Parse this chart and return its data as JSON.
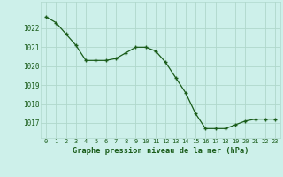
{
  "x": [
    0,
    1,
    2,
    3,
    4,
    5,
    6,
    7,
    8,
    9,
    10,
    11,
    12,
    13,
    14,
    15,
    16,
    17,
    18,
    19,
    20,
    21,
    22,
    23
  ],
  "y": [
    1022.6,
    1022.3,
    1021.7,
    1021.1,
    1020.3,
    1020.3,
    1020.3,
    1020.4,
    1020.7,
    1021.0,
    1021.0,
    1020.8,
    1020.2,
    1019.4,
    1018.6,
    1017.5,
    1016.7,
    1016.7,
    1016.7,
    1016.9,
    1017.1,
    1017.2,
    1017.2,
    1017.2
  ],
  "line_color": "#1a5c1a",
  "marker_color": "#1a5c1a",
  "bg_color": "#cdf0ea",
  "grid_color": "#b0d8cc",
  "xlabel": "Graphe pression niveau de la mer (hPa)",
  "xlabel_color": "#1a5c1a",
  "tick_color": "#1a5c1a",
  "ylim": [
    1016.2,
    1023.4
  ],
  "yticks": [
    1017,
    1018,
    1019,
    1020,
    1021,
    1022
  ],
  "xlim": [
    -0.5,
    23.5
  ],
  "xticks": [
    0,
    1,
    2,
    3,
    4,
    5,
    6,
    7,
    8,
    9,
    10,
    11,
    12,
    13,
    14,
    15,
    16,
    17,
    18,
    19,
    20,
    21,
    22,
    23
  ]
}
